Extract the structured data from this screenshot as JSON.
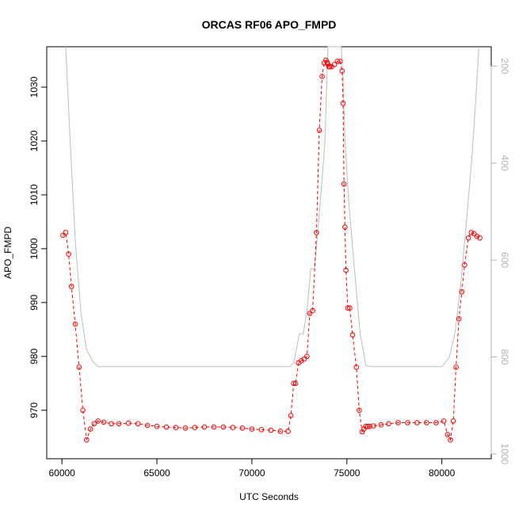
{
  "chart_data": {
    "type": "scatter",
    "title": "ORCAS RF06 APO_FMPD",
    "xlabel": "UTC Seconds",
    "ylabel": "APO_FMPD",
    "xlim": [
      59200,
      82600
    ],
    "ylim": [
      961,
      1037.5
    ],
    "x_ticks": [
      60000,
      65000,
      70000,
      75000,
      80000
    ],
    "y_ticks": [
      970,
      980,
      990,
      1000,
      1010,
      1020,
      1030
    ],
    "y2lim": [
      1010,
      160
    ],
    "y2_ticks": [
      200,
      400,
      600,
      800,
      1000
    ],
    "grid": false,
    "legend": "none",
    "colors": {
      "primary": "#ff0000",
      "secondary": "#bebebe"
    },
    "series": [
      {
        "x": [
          60050,
          60200,
          60350,
          60500,
          60700,
          60900,
          61100,
          61300,
          61500,
          61700,
          61900,
          62200,
          62600,
          63000,
          63500,
          64000,
          64500,
          65000,
          65500,
          66000,
          66500,
          67000,
          67500,
          68000,
          68500,
          69000,
          69500,
          70000,
          70500,
          71000,
          71500,
          71900,
          72050,
          72200,
          72300,
          72450,
          72600,
          72750,
          72900,
          73050,
          73200,
          73400,
          73550,
          73700,
          73800,
          73900,
          73960,
          74000,
          74050,
          74100,
          74200,
          74350,
          74500,
          74650,
          74750,
          74800,
          74850,
          74900,
          74950,
          75050,
          75150,
          75300,
          75500,
          75650,
          75800,
          75900,
          76000,
          76100,
          76200,
          76400,
          76800,
          77200,
          77700,
          78200,
          78700,
          79200,
          79700,
          80100,
          80300,
          80450,
          80600,
          80750,
          80900,
          81050,
          81200,
          81400,
          81550,
          81700,
          81850,
          82000
        ],
        "y": [
          1002.5,
          1003,
          999,
          993,
          986,
          978,
          970,
          964.5,
          966.5,
          967.5,
          968,
          967.8,
          967.5,
          967.5,
          967.6,
          967.5,
          967.2,
          967,
          966.9,
          966.8,
          966.7,
          966.8,
          966.9,
          966.9,
          966.9,
          966.8,
          966.7,
          966.5,
          966.4,
          966.3,
          966.1,
          966.1,
          969,
          975,
          975,
          978.8,
          979.2,
          979.5,
          980,
          988,
          988.5,
          1003,
          1022,
          1032,
          1034.5,
          1035,
          1034.6,
          1034.3,
          1033.8,
          1033.8,
          1033.8,
          1034.2,
          1034.8,
          1034.8,
          1033,
          1027,
          1012,
          1004,
          996,
          989,
          989,
          984,
          978,
          970,
          966,
          966.5,
          967,
          967,
          967,
          967.1,
          967.3,
          967.5,
          967.7,
          967.7,
          967.7,
          967.7,
          967.7,
          968,
          965.5,
          964.5,
          968,
          978,
          987,
          992,
          997,
          1002,
          1003,
          1002.8,
          1002.3,
          1002
        ]
      },
      {
        "x": [
          60200,
          60400,
          60700,
          61000,
          61300,
          61600,
          61900,
          62300,
          72000,
          72200,
          72500,
          72700,
          72900,
          73100,
          73300,
          73500,
          73700,
          73850,
          73950,
          74000,
          74700,
          74800,
          74900,
          75100,
          75400,
          75700,
          76000,
          76300,
          76600,
          80000,
          80400,
          80700,
          81000,
          81300,
          81600,
          81850,
          81950
        ],
        "y": [
          160,
          330,
          560,
          710,
          785,
          808,
          820,
          820,
          820,
          812,
          752,
          752,
          705,
          618,
          618,
          528,
          433,
          352,
          225,
          160,
          160,
          225,
          352,
          480,
          620,
          752,
          818,
          820,
          820,
          820,
          800,
          750,
          650,
          520,
          380,
          230,
          160
        ]
      }
    ]
  }
}
